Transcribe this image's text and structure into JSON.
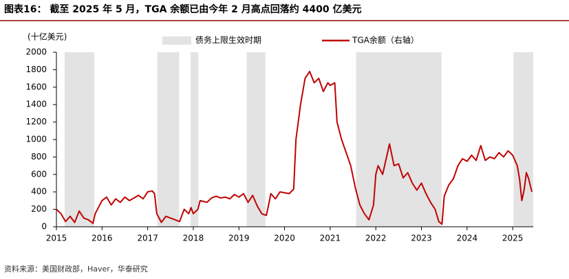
{
  "chart_data": {
    "type": "line",
    "title": "图表16： 截至 2025 年 5 月，TGA 余额已由今年 2 月高点回落约 4400 亿美元",
    "y_axis_label": "(十亿美元)",
    "source": "资料来源：美国财政部，Haver，华泰研究",
    "xlim": [
      2015,
      2025.45
    ],
    "xticks": [
      2015,
      2016,
      2017,
      2018,
      2019,
      2020,
      2021,
      2022,
      2023,
      2024,
      2025
    ],
    "ylim": [
      0,
      2000
    ],
    "yticks": [
      0,
      200,
      400,
      600,
      800,
      1000,
      1200,
      1400,
      1600,
      1800,
      2000
    ],
    "shaded": {
      "name": "债务上限生效时期",
      "color": "#e3e3e3",
      "periods": [
        [
          2015.18,
          2015.83
        ],
        [
          2017.21,
          2017.69
        ],
        [
          2017.94,
          2018.11
        ],
        [
          2019.17,
          2019.58
        ],
        [
          2021.57,
          2023.44
        ],
        [
          2025.02,
          2025.45
        ]
      ]
    },
    "series": [
      {
        "name": "TGA余额（右轴）",
        "color": "#c00000",
        "x": [
          2015.0,
          2015.1,
          2015.2,
          2015.3,
          2015.4,
          2015.5,
          2015.6,
          2015.7,
          2015.8,
          2015.85,
          2015.9,
          2016.0,
          2016.1,
          2016.2,
          2016.3,
          2016.4,
          2016.5,
          2016.6,
          2016.7,
          2016.8,
          2016.9,
          2017.0,
          2017.1,
          2017.15,
          2017.2,
          2017.3,
          2017.4,
          2017.5,
          2017.6,
          2017.7,
          2017.8,
          2017.9,
          2017.95,
          2018.0,
          2018.1,
          2018.15,
          2018.3,
          2018.4,
          2018.5,
          2018.6,
          2018.7,
          2018.8,
          2018.9,
          2019.0,
          2019.1,
          2019.2,
          2019.3,
          2019.4,
          2019.5,
          2019.6,
          2019.65,
          2019.7,
          2019.8,
          2019.9,
          2020.0,
          2020.1,
          2020.2,
          2020.25,
          2020.35,
          2020.45,
          2020.55,
          2020.65,
          2020.75,
          2020.85,
          2020.95,
          2021.0,
          2021.1,
          2021.15,
          2021.25,
          2021.35,
          2021.45,
          2021.55,
          2021.65,
          2021.75,
          2021.85,
          2021.95,
          2022.0,
          2022.05,
          2022.15,
          2022.3,
          2022.4,
          2022.5,
          2022.6,
          2022.7,
          2022.8,
          2022.9,
          2023.0,
          2023.1,
          2023.2,
          2023.3,
          2023.38,
          2023.45,
          2023.5,
          2023.6,
          2023.7,
          2023.8,
          2023.9,
          2024.0,
          2024.1,
          2024.2,
          2024.3,
          2024.4,
          2024.5,
          2024.6,
          2024.7,
          2024.8,
          2024.9,
          2025.0,
          2025.1,
          2025.15,
          2025.2,
          2025.25,
          2025.3,
          2025.35,
          2025.42
        ],
        "values": [
          200,
          150,
          60,
          120,
          50,
          180,
          100,
          80,
          40,
          150,
          200,
          300,
          340,
          250,
          320,
          280,
          340,
          300,
          330,
          360,
          320,
          400,
          410,
          380,
          150,
          50,
          120,
          100,
          80,
          60,
          200,
          150,
          220,
          150,
          200,
          300,
          280,
          330,
          350,
          330,
          340,
          320,
          370,
          340,
          380,
          280,
          360,
          240,
          150,
          130,
          250,
          380,
          320,
          400,
          390,
          380,
          430,
          1000,
          1400,
          1700,
          1780,
          1650,
          1700,
          1550,
          1650,
          1620,
          1650,
          1200,
          1000,
          850,
          700,
          450,
          250,
          150,
          80,
          250,
          600,
          700,
          600,
          950,
          700,
          720,
          560,
          620,
          500,
          420,
          500,
          380,
          280,
          200,
          60,
          30,
          350,
          480,
          550,
          700,
          780,
          750,
          820,
          760,
          930,
          760,
          800,
          780,
          850,
          800,
          870,
          820,
          700,
          550,
          300,
          420,
          620,
          550,
          400
        ]
      }
    ]
  }
}
